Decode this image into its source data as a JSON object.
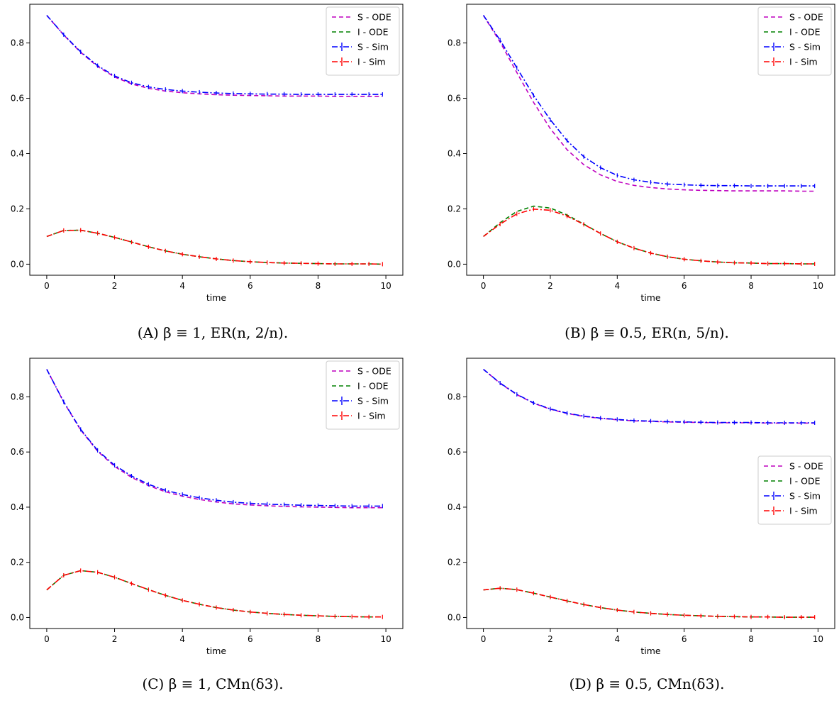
{
  "colors": {
    "S-ODE": "#bf00bf",
    "I-ODE": "#008000",
    "S-Sim": "#0000ff",
    "I-Sim": "#ff0000"
  },
  "chart_data": [
    {
      "type": "line",
      "caption": "(A) β ≡ 1, ER(n, 2/n).",
      "xlabel": "time",
      "ylabel": "",
      "xlim": [
        -0.5,
        10.5
      ],
      "ylim": [
        -0.04,
        0.94
      ],
      "xticks": [
        0,
        2,
        4,
        6,
        8,
        10
      ],
      "yticks": [
        0.0,
        0.2,
        0.4,
        0.6,
        0.8
      ],
      "legend_position": "top-right",
      "legend": [
        "S - ODE",
        "I - ODE",
        "S - Sim",
        "I - Sim"
      ],
      "x": [
        0,
        0.5,
        1,
        1.5,
        2,
        2.5,
        3,
        3.5,
        4,
        4.5,
        5,
        5.5,
        6,
        6.5,
        7,
        7.5,
        8,
        8.5,
        9,
        9.5,
        9.9
      ],
      "series": [
        {
          "name": "S - ODE",
          "values": [
            0.9,
            0.829,
            0.766,
            0.715,
            0.677,
            0.652,
            0.636,
            0.626,
            0.62,
            0.616,
            0.613,
            0.611,
            0.61,
            0.609,
            0.608,
            0.608,
            0.608,
            0.607,
            0.607,
            0.607,
            0.607
          ]
        },
        {
          "name": "I - ODE",
          "values": [
            0.1,
            0.122,
            0.123,
            0.112,
            0.097,
            0.08,
            0.063,
            0.048,
            0.036,
            0.027,
            0.019,
            0.013,
            0.009,
            0.006,
            0.004,
            0.003,
            0.002,
            0.001,
            0.001,
            0.001,
            0.0
          ]
        },
        {
          "name": "S - Sim",
          "values": [
            0.9,
            0.83,
            0.768,
            0.718,
            0.681,
            0.656,
            0.641,
            0.632,
            0.626,
            0.622,
            0.619,
            0.617,
            0.616,
            0.615,
            0.615,
            0.614,
            0.614,
            0.614,
            0.614,
            0.614,
            0.614
          ]
        },
        {
          "name": "I - Sim",
          "values": [
            0.1,
            0.122,
            0.123,
            0.112,
            0.097,
            0.08,
            0.063,
            0.048,
            0.036,
            0.027,
            0.019,
            0.013,
            0.009,
            0.006,
            0.004,
            0.003,
            0.002,
            0.001,
            0.001,
            0.001,
            0.0
          ]
        }
      ]
    },
    {
      "type": "line",
      "caption": "(B) β ≡ 0.5, ER(n, 5/n).",
      "xlabel": "time",
      "ylabel": "",
      "xlim": [
        -0.5,
        10.5
      ],
      "ylim": [
        -0.04,
        0.94
      ],
      "xticks": [
        0,
        2,
        4,
        6,
        8,
        10
      ],
      "yticks": [
        0.0,
        0.2,
        0.4,
        0.6,
        0.8
      ],
      "legend_position": "top-right",
      "legend": [
        "S - ODE",
        "I - ODE",
        "S - Sim",
        "I - Sim"
      ],
      "x": [
        0,
        0.5,
        1,
        1.5,
        2,
        2.5,
        3,
        3.5,
        4,
        4.5,
        5,
        5.5,
        6,
        6.5,
        7,
        7.5,
        8,
        8.5,
        9,
        9.5,
        9.9
      ],
      "series": [
        {
          "name": "S - ODE",
          "values": [
            0.9,
            0.803,
            0.693,
            0.585,
            0.49,
            0.414,
            0.36,
            0.323,
            0.299,
            0.285,
            0.277,
            0.272,
            0.269,
            0.267,
            0.266,
            0.265,
            0.265,
            0.265,
            0.265,
            0.264,
            0.264
          ]
        },
        {
          "name": "I - ODE",
          "values": [
            0.1,
            0.15,
            0.191,
            0.21,
            0.203,
            0.178,
            0.145,
            0.111,
            0.081,
            0.058,
            0.04,
            0.027,
            0.018,
            0.012,
            0.008,
            0.005,
            0.004,
            0.002,
            0.002,
            0.001,
            0.001
          ]
        },
        {
          "name": "S - Sim",
          "values": [
            0.9,
            0.81,
            0.71,
            0.61,
            0.522,
            0.447,
            0.389,
            0.349,
            0.321,
            0.305,
            0.296,
            0.29,
            0.287,
            0.285,
            0.284,
            0.284,
            0.283,
            0.283,
            0.283,
            0.283,
            0.283
          ]
        },
        {
          "name": "I - Sim",
          "values": [
            0.1,
            0.145,
            0.182,
            0.199,
            0.195,
            0.174,
            0.144,
            0.111,
            0.081,
            0.058,
            0.04,
            0.027,
            0.018,
            0.012,
            0.008,
            0.005,
            0.004,
            0.002,
            0.002,
            0.001,
            0.001
          ]
        }
      ]
    },
    {
      "type": "line",
      "caption": "(C) β ≡ 1, CMn(δ3).",
      "xlabel": "time",
      "ylabel": "",
      "xlim": [
        -0.5,
        10.5
      ],
      "ylim": [
        -0.04,
        0.94
      ],
      "xticks": [
        0,
        2,
        4,
        6,
        8,
        10
      ],
      "yticks": [
        0.0,
        0.2,
        0.4,
        0.6,
        0.8
      ],
      "legend_position": "top-right",
      "legend": [
        "S - ODE",
        "I - ODE",
        "S - Sim",
        "I - Sim"
      ],
      "x": [
        0,
        0.5,
        1,
        1.5,
        2,
        2.5,
        3,
        3.5,
        4,
        4.5,
        5,
        5.5,
        6,
        6.5,
        7,
        7.5,
        8,
        8.5,
        9,
        9.5,
        9.9
      ],
      "series": [
        {
          "name": "S - ODE",
          "values": [
            0.9,
            0.781,
            0.68,
            0.603,
            0.548,
            0.508,
            0.478,
            0.456,
            0.44,
            0.428,
            0.419,
            0.412,
            0.408,
            0.405,
            0.403,
            0.401,
            0.4,
            0.399,
            0.398,
            0.398,
            0.398
          ]
        },
        {
          "name": "I - ODE",
          "values": [
            0.1,
            0.153,
            0.17,
            0.164,
            0.146,
            0.123,
            0.101,
            0.08,
            0.062,
            0.048,
            0.036,
            0.027,
            0.02,
            0.015,
            0.011,
            0.008,
            0.006,
            0.004,
            0.003,
            0.002,
            0.002
          ]
        },
        {
          "name": "S - Sim",
          "values": [
            0.9,
            0.782,
            0.682,
            0.606,
            0.552,
            0.513,
            0.483,
            0.461,
            0.446,
            0.434,
            0.425,
            0.418,
            0.414,
            0.411,
            0.409,
            0.407,
            0.406,
            0.405,
            0.404,
            0.404,
            0.404
          ]
        },
        {
          "name": "I - Sim",
          "values": [
            0.1,
            0.153,
            0.17,
            0.164,
            0.146,
            0.123,
            0.101,
            0.08,
            0.062,
            0.048,
            0.036,
            0.027,
            0.02,
            0.015,
            0.011,
            0.008,
            0.006,
            0.004,
            0.003,
            0.002,
            0.002
          ]
        }
      ]
    },
    {
      "type": "line",
      "caption": "(D) β ≡ 0.5, CMn(δ3).",
      "xlabel": "time",
      "ylabel": "",
      "xlim": [
        -0.5,
        10.5
      ],
      "ylim": [
        -0.04,
        0.94
      ],
      "xticks": [
        0,
        2,
        4,
        6,
        8,
        10
      ],
      "yticks": [
        0.0,
        0.2,
        0.4,
        0.6,
        0.8
      ],
      "legend_position": "center-right",
      "legend": [
        "S - ODE",
        "I - ODE",
        "S - Sim",
        "I - Sim"
      ],
      "x": [
        0,
        0.5,
        1,
        1.5,
        2,
        2.5,
        3,
        3.5,
        4,
        4.5,
        5,
        5.5,
        6,
        6.5,
        7,
        7.5,
        8,
        8.5,
        9,
        9.5,
        9.9
      ],
      "series": [
        {
          "name": "S - ODE",
          "values": [
            0.9,
            0.849,
            0.808,
            0.777,
            0.755,
            0.74,
            0.729,
            0.722,
            0.717,
            0.713,
            0.711,
            0.709,
            0.708,
            0.707,
            0.706,
            0.706,
            0.706,
            0.705,
            0.705,
            0.705,
            0.705
          ]
        },
        {
          "name": "I - ODE",
          "values": [
            0.1,
            0.106,
            0.101,
            0.088,
            0.074,
            0.06,
            0.047,
            0.036,
            0.027,
            0.02,
            0.015,
            0.011,
            0.008,
            0.006,
            0.004,
            0.003,
            0.002,
            0.002,
            0.001,
            0.001,
            0.001
          ]
        },
        {
          "name": "S - Sim",
          "values": [
            0.9,
            0.85,
            0.809,
            0.778,
            0.756,
            0.741,
            0.73,
            0.723,
            0.718,
            0.714,
            0.712,
            0.71,
            0.709,
            0.708,
            0.707,
            0.707,
            0.707,
            0.706,
            0.706,
            0.706,
            0.706
          ]
        },
        {
          "name": "I - Sim",
          "values": [
            0.1,
            0.106,
            0.101,
            0.088,
            0.074,
            0.06,
            0.047,
            0.036,
            0.027,
            0.02,
            0.015,
            0.011,
            0.008,
            0.006,
            0.004,
            0.003,
            0.002,
            0.002,
            0.001,
            0.001,
            0.001
          ]
        }
      ]
    }
  ]
}
